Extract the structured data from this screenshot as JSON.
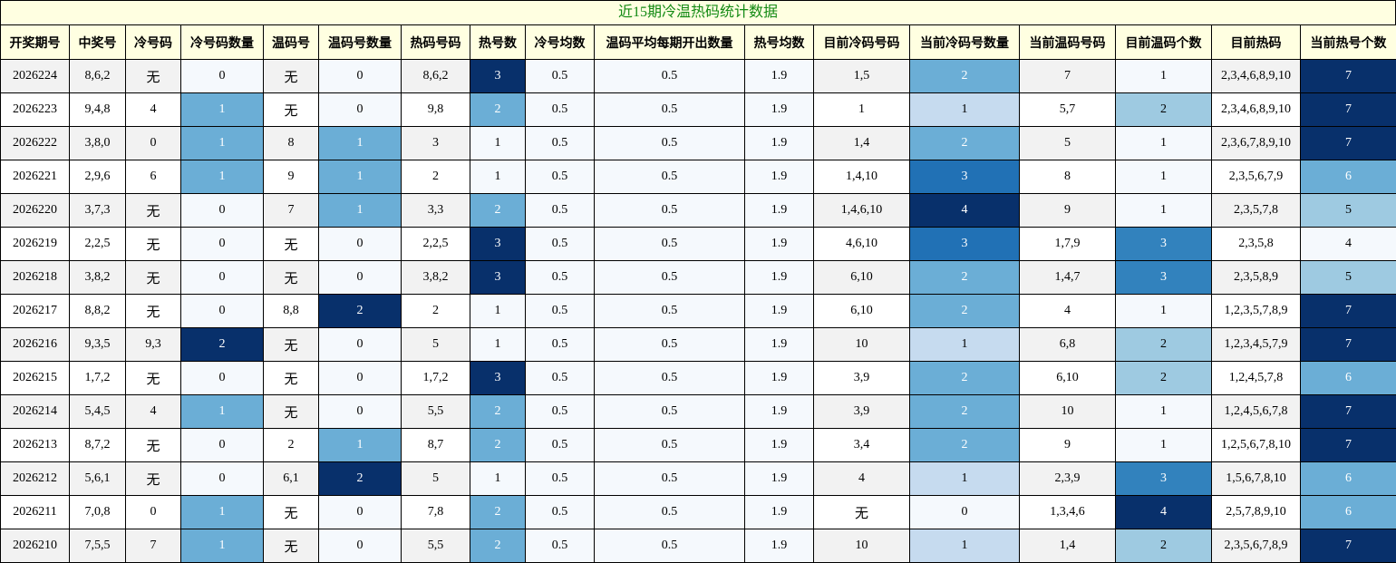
{
  "title": "近15期冷温热码统计数据",
  "columns": [
    "开奖期号",
    "中奖号",
    "冷号码",
    "冷号码数量",
    "温码号",
    "温码号数量",
    "热码号码",
    "热号数",
    "冷号均数",
    "温码平均每期开出数量",
    "热号均数",
    "目前冷码号码",
    "当前冷码号数量",
    "当前温码号码",
    "目前温码个数",
    "目前热码",
    "当前热号个数"
  ],
  "rows": [
    [
      "2026224",
      "8,6,2",
      "无",
      "0",
      "无",
      "0",
      "8,6,2",
      "3",
      "0.5",
      "0.5",
      "1.9",
      "1,5",
      "2",
      "7",
      "1",
      "2,3,4,6,8,9,10",
      "7"
    ],
    [
      "2026223",
      "9,4,8",
      "4",
      "1",
      "无",
      "0",
      "9,8",
      "2",
      "0.5",
      "0.5",
      "1.9",
      "1",
      "1",
      "5,7",
      "2",
      "2,3,4,6,8,9,10",
      "7"
    ],
    [
      "2026222",
      "3,8,0",
      "0",
      "1",
      "8",
      "1",
      "3",
      "1",
      "0.5",
      "0.5",
      "1.9",
      "1,4",
      "2",
      "5",
      "1",
      "2,3,6,7,8,9,10",
      "7"
    ],
    [
      "2026221",
      "2,9,6",
      "6",
      "1",
      "9",
      "1",
      "2",
      "1",
      "0.5",
      "0.5",
      "1.9",
      "1,4,10",
      "3",
      "8",
      "1",
      "2,3,5,6,7,9",
      "6"
    ],
    [
      "2026220",
      "3,7,3",
      "无",
      "0",
      "7",
      "1",
      "3,3",
      "2",
      "0.5",
      "0.5",
      "1.9",
      "1,4,6,10",
      "4",
      "9",
      "1",
      "2,3,5,7,8",
      "5"
    ],
    [
      "2026219",
      "2,2,5",
      "无",
      "0",
      "无",
      "0",
      "2,2,5",
      "3",
      "0.5",
      "0.5",
      "1.9",
      "4,6,10",
      "3",
      "1,7,9",
      "3",
      "2,3,5,8",
      "4"
    ],
    [
      "2026218",
      "3,8,2",
      "无",
      "0",
      "无",
      "0",
      "3,8,2",
      "3",
      "0.5",
      "0.5",
      "1.9",
      "6,10",
      "2",
      "1,4,7",
      "3",
      "2,3,5,8,9",
      "5"
    ],
    [
      "2026217",
      "8,8,2",
      "无",
      "0",
      "8,8",
      "2",
      "2",
      "1",
      "0.5",
      "0.5",
      "1.9",
      "6,10",
      "2",
      "4",
      "1",
      "1,2,3,5,7,8,9",
      "7"
    ],
    [
      "2026216",
      "9,3,5",
      "9,3",
      "2",
      "无",
      "0",
      "5",
      "1",
      "0.5",
      "0.5",
      "1.9",
      "10",
      "1",
      "6,8",
      "2",
      "1,2,3,4,5,7,9",
      "7"
    ],
    [
      "2026215",
      "1,7,2",
      "无",
      "0",
      "无",
      "0",
      "1,7,2",
      "3",
      "0.5",
      "0.5",
      "1.9",
      "3,9",
      "2",
      "6,10",
      "2",
      "1,2,4,5,7,8",
      "6"
    ],
    [
      "2026214",
      "5,4,5",
      "4",
      "1",
      "无",
      "0",
      "5,5",
      "2",
      "0.5",
      "0.5",
      "1.9",
      "3,9",
      "2",
      "10",
      "1",
      "1,2,4,5,6,7,8",
      "7"
    ],
    [
      "2026213",
      "8,7,2",
      "无",
      "0",
      "2",
      "1",
      "8,7",
      "2",
      "0.5",
      "0.5",
      "1.9",
      "3,4",
      "2",
      "9",
      "1",
      "1,2,5,6,7,8,10",
      "7"
    ],
    [
      "2026212",
      "5,6,1",
      "无",
      "0",
      "6,1",
      "2",
      "5",
      "1",
      "0.5",
      "0.5",
      "1.9",
      "4",
      "1",
      "2,3,9",
      "3",
      "1,5,6,7,8,10",
      "6"
    ],
    [
      "2026211",
      "7,0,8",
      "0",
      "1",
      "无",
      "0",
      "7,8",
      "2",
      "0.5",
      "0.5",
      "1.9",
      "无",
      "0",
      "1,3,4,6",
      "4",
      "2,5,7,8,9,10",
      "6"
    ],
    [
      "2026210",
      "7,5,5",
      "7",
      "1",
      "无",
      "0",
      "5,5",
      "2",
      "0.5",
      "0.5",
      "1.9",
      "10",
      "1",
      "1,4",
      "2",
      "2,3,5,6,7,8,9",
      "7"
    ]
  ],
  "cell_shading": [
    [
      null,
      null,
      null,
      0,
      null,
      0,
      null,
      6,
      0,
      0,
      0,
      null,
      3,
      null,
      0,
      null,
      6
    ],
    [
      null,
      null,
      null,
      3,
      null,
      0,
      null,
      3,
      0,
      0,
      0,
      null,
      1,
      null,
      2,
      null,
      6
    ],
    [
      null,
      null,
      null,
      3,
      null,
      3,
      null,
      0,
      0,
      0,
      0,
      null,
      3,
      null,
      0,
      null,
      6
    ],
    [
      null,
      null,
      null,
      3,
      null,
      3,
      null,
      0,
      0,
      0,
      0,
      null,
      5,
      null,
      0,
      null,
      3
    ],
    [
      null,
      null,
      null,
      0,
      null,
      3,
      null,
      3,
      0,
      0,
      0,
      null,
      6,
      null,
      0,
      null,
      2
    ],
    [
      null,
      null,
      null,
      0,
      null,
      0,
      null,
      6,
      0,
      0,
      0,
      null,
      5,
      null,
      4,
      null,
      0
    ],
    [
      null,
      null,
      null,
      0,
      null,
      0,
      null,
      6,
      0,
      0,
      0,
      null,
      3,
      null,
      4,
      null,
      2
    ],
    [
      null,
      null,
      null,
      0,
      null,
      6,
      null,
      0,
      0,
      0,
      0,
      null,
      3,
      null,
      0,
      null,
      6
    ],
    [
      null,
      null,
      null,
      6,
      null,
      0,
      null,
      0,
      0,
      0,
      0,
      null,
      1,
      null,
      2,
      null,
      6
    ],
    [
      null,
      null,
      null,
      0,
      null,
      0,
      null,
      6,
      0,
      0,
      0,
      null,
      3,
      null,
      2,
      null,
      3
    ],
    [
      null,
      null,
      null,
      3,
      null,
      0,
      null,
      3,
      0,
      0,
      0,
      null,
      3,
      null,
      0,
      null,
      6
    ],
    [
      null,
      null,
      null,
      0,
      null,
      3,
      null,
      3,
      0,
      0,
      0,
      null,
      3,
      null,
      0,
      null,
      6
    ],
    [
      null,
      null,
      null,
      0,
      null,
      6,
      null,
      0,
      0,
      0,
      0,
      null,
      1,
      null,
      4,
      null,
      3
    ],
    [
      null,
      null,
      null,
      3,
      null,
      0,
      null,
      3,
      0,
      0,
      0,
      null,
      0,
      null,
      6,
      null,
      3
    ],
    [
      null,
      null,
      null,
      3,
      null,
      0,
      null,
      3,
      0,
      0,
      0,
      null,
      1,
      null,
      2,
      null,
      6
    ]
  ],
  "shade_colors": [
    "#f5f9fd",
    "#c6dbef",
    "#9ecae1",
    "#6baed6",
    "#3282bd",
    "#2171b5",
    "#08306b"
  ],
  "header_bg": "#ffffe1",
  "title_color": "#138a13"
}
